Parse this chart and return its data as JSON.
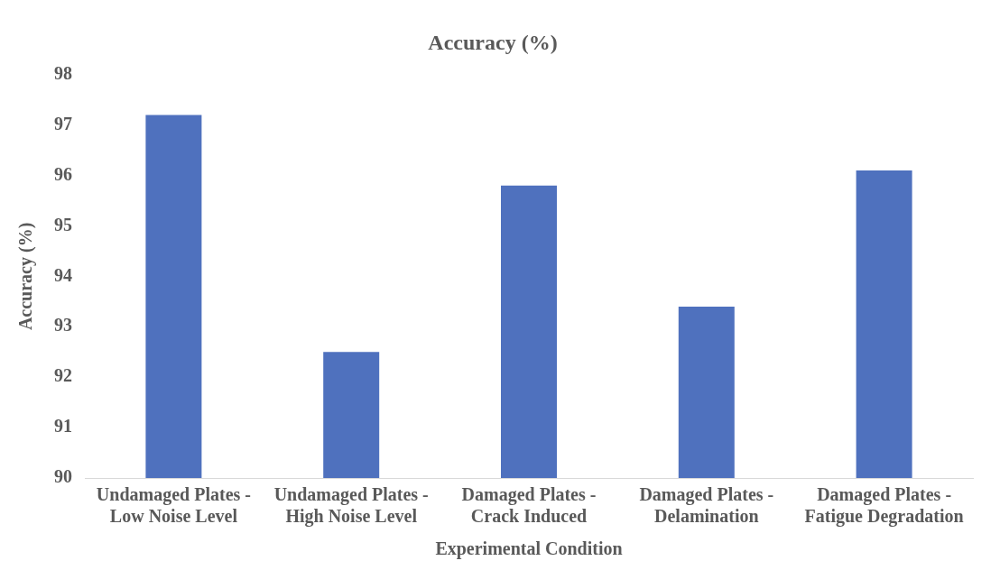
{
  "chart_data": {
    "type": "bar",
    "title": "Accuracy (%)",
    "xlabel": "Experimental Condition",
    "ylabel": "Accuracy (%)",
    "categories": [
      "Undamaged Plates - Low Noise Level",
      "Undamaged Plates - High Noise Level",
      "Damaged Plates - Crack Induced",
      "Damaged Plates - Delamination",
      "Damaged Plates - Fatigue Degradation"
    ],
    "values": [
      97.2,
      92.5,
      95.8,
      93.4,
      96.1
    ],
    "color": "#4f71be",
    "ylim": [
      90,
      98
    ],
    "yticks": [
      90,
      91,
      92,
      93,
      94,
      95,
      96,
      97,
      98
    ],
    "grid": false,
    "legend": false
  }
}
